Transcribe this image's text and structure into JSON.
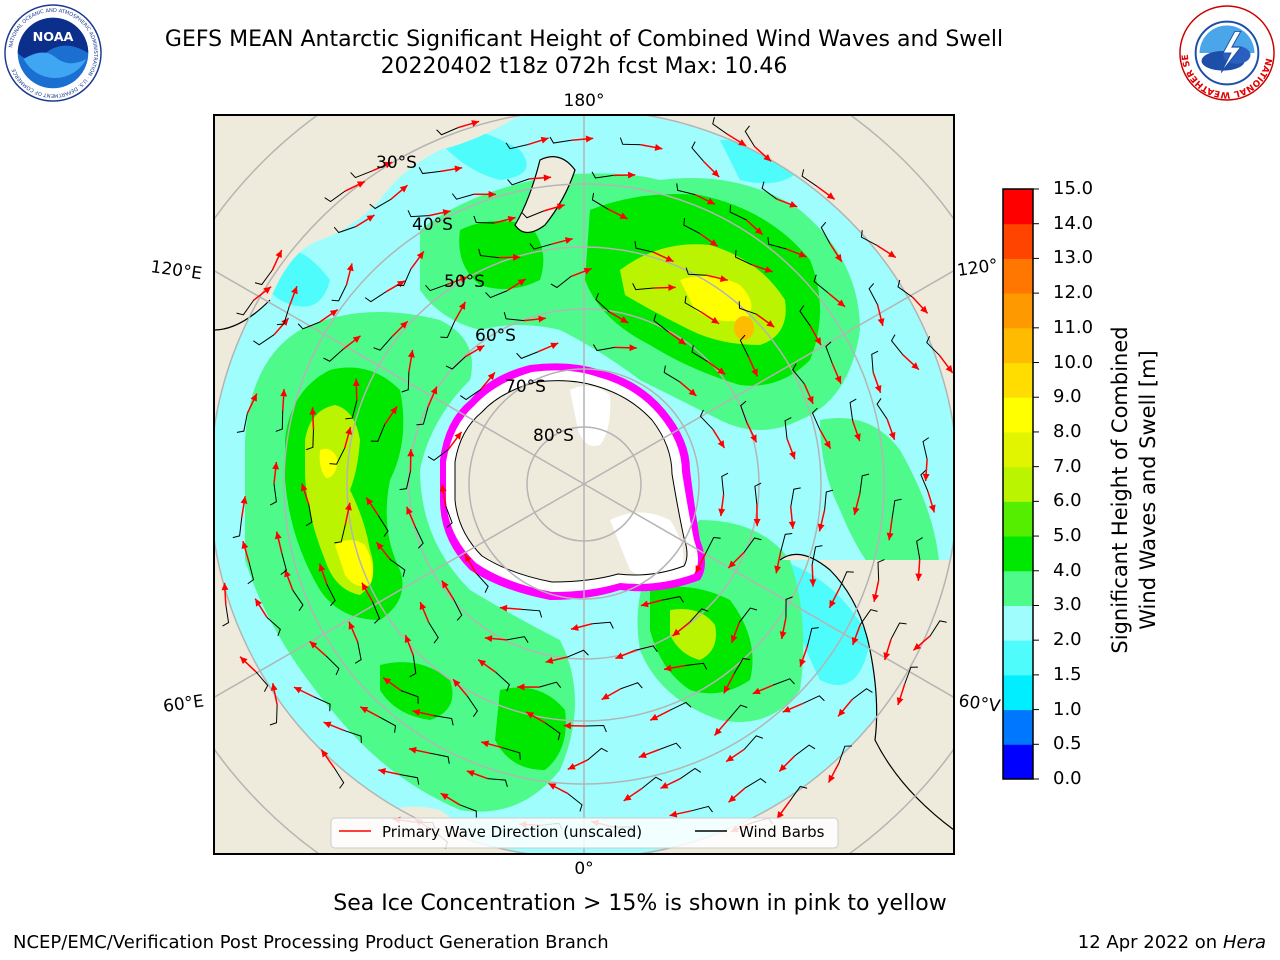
{
  "header": {
    "title_line1": "GEFS MEAN Antarctic Significant Height of Combined Wind Waves and Swell",
    "title_line2": "20220402 t18z 072h fcst   Max: 10.46"
  },
  "logos": {
    "noaa_text": "NOAA",
    "noaa_ring_text": "NATIONAL OCEANIC AND ATMOSPHERIC ADMINISTRATION · U.S. DEPARTMENT OF COMMERCE",
    "nws_ring_text": "NATIONAL WEATHER SERVICE"
  },
  "map": {
    "projection": "south-polar-stereographic",
    "longitude_labels": {
      "top": "180°",
      "left_upper": "120°E",
      "right_upper": "120°",
      "left_lower": "60°E",
      "right_lower": "60°V",
      "bottom": "0°"
    },
    "latitude_labels": [
      "30°S",
      "40°S",
      "50°S",
      "60°S",
      "70°S",
      "80°S"
    ],
    "colors": {
      "land": "#efebdc",
      "ocean_low": "#9ffdfd",
      "ocean_mid": "#4efb8a",
      "ocean_high": "#00e700",
      "ice_edge": "#ff00ff",
      "arrow": "#ff0000",
      "barb": "#000000"
    }
  },
  "legend": {
    "wave_direction": "Primary Wave Direction (unscaled)",
    "wind_barbs": "Wind Barbs"
  },
  "colorbar": {
    "label_line1": "Significant Height of Combined",
    "label_line2": "Wind Waves and Swell [m]",
    "ticks": [
      "15.0",
      "14.0",
      "13.0",
      "12.0",
      "11.0",
      "10.0",
      "9.0",
      "8.0",
      "7.0",
      "6.0",
      "5.0",
      "4.0",
      "3.0",
      "2.0",
      "1.5",
      "1.0",
      "0.5",
      "0.0"
    ],
    "colors": [
      "#0000ff",
      "#0077ff",
      "#00eeff",
      "#4efcfc",
      "#9ffdfd",
      "#4efb8a",
      "#00e700",
      "#55ee00",
      "#bbf400",
      "#e1f400",
      "#ffff00",
      "#ffdd00",
      "#ffbb00",
      "#ff9900",
      "#ff7700",
      "#ff4400",
      "#ff0000"
    ]
  },
  "note": "Sea Ice Concentration > 15% is shown in pink to yellow",
  "footer": {
    "left": "NCEP/EMC/Verification Post Processing Product Generation Branch",
    "right_date": "12 Apr 2022 on ",
    "right_host": "Hera"
  }
}
